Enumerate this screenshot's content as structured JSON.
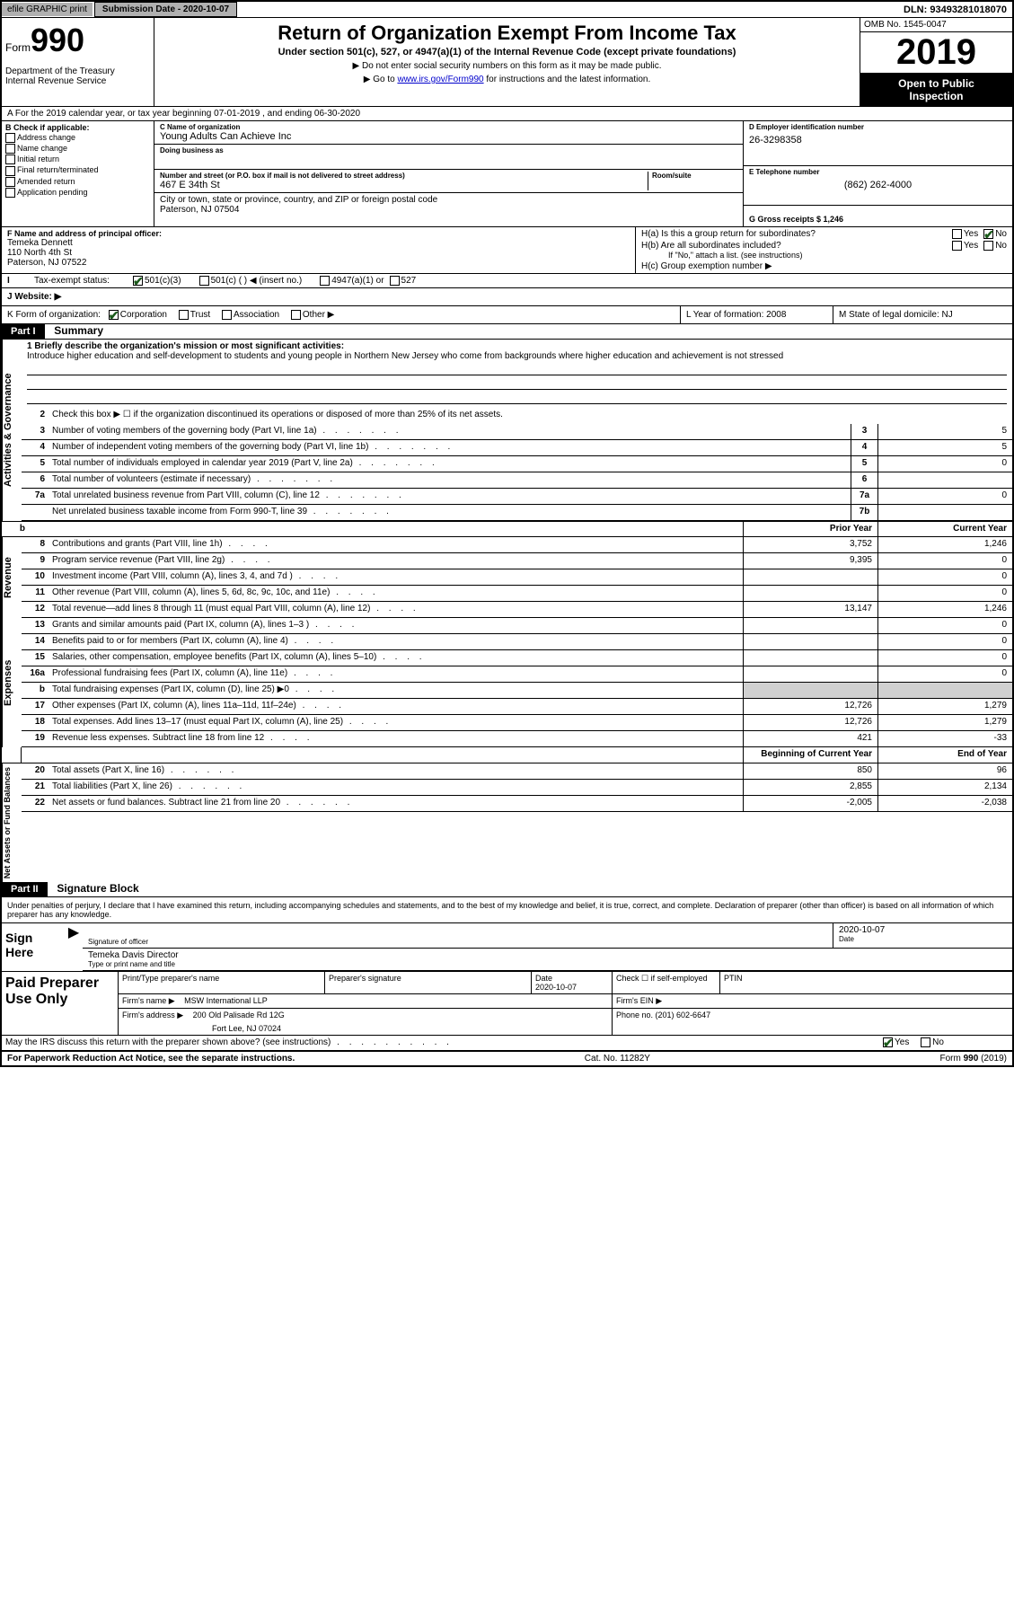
{
  "topbar": {
    "efile": "efile GRAPHIC print",
    "submission_label": "Submission Date - 2020-10-07",
    "dln": "DLN: 93493281018070"
  },
  "header": {
    "form_word": "Form",
    "form_num": "990",
    "dept": "Department of the Treasury\nInternal Revenue Service",
    "title": "Return of Organization Exempt From Income Tax",
    "subtitle": "Under section 501(c), 527, or 4947(a)(1) of the Internal Revenue Code (except private foundations)",
    "instr1": "▶ Do not enter social security numbers on this form as it may be made public.",
    "instr2_pre": "▶ Go to ",
    "instr2_link": "www.irs.gov/Form990",
    "instr2_post": " for instructions and the latest information.",
    "omb": "OMB No. 1545-0047",
    "year": "2019",
    "open1": "Open to Public",
    "open2": "Inspection"
  },
  "row_a": "A For the 2019 calendar year, or tax year beginning 07-01-2019    , and ending 06-30-2020",
  "col_b": {
    "title": "B Check if applicable:",
    "items": [
      "Address change",
      "Name change",
      "Initial return",
      "Final return/terminated",
      "Amended return",
      "Application pending"
    ]
  },
  "col_c": {
    "name_label": "C Name of organization",
    "name": "Young Adults Can Achieve Inc",
    "dba_label": "Doing business as",
    "dba": "",
    "street_label": "Number and street (or P.O. box if mail is not delivered to street address)",
    "room_label": "Room/suite",
    "street": "467 E 34th St",
    "city_label": "City or town, state or province, country, and ZIP or foreign postal code",
    "city": "Paterson, NJ  07504"
  },
  "col_d": {
    "ein_label": "D Employer identification number",
    "ein": "26-3298358",
    "phone_label": "E Telephone number",
    "phone": "(862) 262-4000",
    "gross_label": "G Gross receipts $ 1,246"
  },
  "col_f": {
    "label": "F  Name and address of principal officer:",
    "name": "Temeka Dennett",
    "addr1": "110 North 4th St",
    "addr2": "Paterson, NJ  07522"
  },
  "col_h": {
    "ha": "H(a)  Is this a group return for subordinates?",
    "hb": "H(b)  Are all subordinates included?",
    "hb_note": "If \"No,\" attach a list. (see instructions)",
    "hc": "H(c)  Group exemption number ▶",
    "yes": "Yes",
    "no": "No"
  },
  "tax_status": {
    "label": "Tax-exempt status:",
    "opt1": "501(c)(3)",
    "opt2": "501(c) (   ) ◀ (insert no.)",
    "opt3": "4947(a)(1) or",
    "opt4": "527"
  },
  "website": "J   Website: ▶",
  "row_k": {
    "label": "K Form of organization:",
    "opts": [
      "Corporation",
      "Trust",
      "Association",
      "Other ▶"
    ]
  },
  "row_l": "L Year of formation: 2008",
  "row_m": "M State of legal domicile: NJ",
  "part1": {
    "header": "Part I",
    "title": "Summary",
    "mission_label": "1   Briefly describe the organization's mission or most significant activities:",
    "mission": "Introduce higher education and self-development to students and young people in Northern New Jersey who come from backgrounds where higher education and achievement is not stressed",
    "line2": "Check this box ▶ ☐  if the organization discontinued its operations or disposed of more than 25% of its net assets."
  },
  "side_labels": {
    "gov": "Activities & Governance",
    "rev": "Revenue",
    "exp": "Expenses",
    "net": "Net Assets or Fund Balances"
  },
  "gov_lines": [
    {
      "n": "3",
      "d": "Number of voting members of the governing body (Part VI, line 1a)",
      "b": "3",
      "v": "5"
    },
    {
      "n": "4",
      "d": "Number of independent voting members of the governing body (Part VI, line 1b)",
      "b": "4",
      "v": "5"
    },
    {
      "n": "5",
      "d": "Total number of individuals employed in calendar year 2019 (Part V, line 2a)",
      "b": "5",
      "v": "0"
    },
    {
      "n": "6",
      "d": "Total number of volunteers (estimate if necessary)",
      "b": "6",
      "v": ""
    },
    {
      "n": "7a",
      "d": "Total unrelated business revenue from Part VIII, column (C), line 12",
      "b": "7a",
      "v": "0"
    },
    {
      "n": "",
      "d": "Net unrelated business taxable income from Form 990-T, line 39",
      "b": "7b",
      "v": ""
    }
  ],
  "col_headers": {
    "prior": "Prior Year",
    "current": "Current Year"
  },
  "rev_lines": [
    {
      "n": "8",
      "d": "Contributions and grants (Part VIII, line 1h)",
      "p": "3,752",
      "c": "1,246"
    },
    {
      "n": "9",
      "d": "Program service revenue (Part VIII, line 2g)",
      "p": "9,395",
      "c": "0"
    },
    {
      "n": "10",
      "d": "Investment income (Part VIII, column (A), lines 3, 4, and 7d )",
      "p": "",
      "c": "0"
    },
    {
      "n": "11",
      "d": "Other revenue (Part VIII, column (A), lines 5, 6d, 8c, 9c, 10c, and 11e)",
      "p": "",
      "c": "0"
    },
    {
      "n": "12",
      "d": "Total revenue—add lines 8 through 11 (must equal Part VIII, column (A), line 12)",
      "p": "13,147",
      "c": "1,246"
    }
  ],
  "exp_lines": [
    {
      "n": "13",
      "d": "Grants and similar amounts paid (Part IX, column (A), lines 1–3 )",
      "p": "",
      "c": "0"
    },
    {
      "n": "14",
      "d": "Benefits paid to or for members (Part IX, column (A), line 4)",
      "p": "",
      "c": "0"
    },
    {
      "n": "15",
      "d": "Salaries, other compensation, employee benefits (Part IX, column (A), lines 5–10)",
      "p": "",
      "c": "0"
    },
    {
      "n": "16a",
      "d": "Professional fundraising fees (Part IX, column (A), line 11e)",
      "p": "",
      "c": "0"
    },
    {
      "n": "b",
      "d": "Total fundraising expenses (Part IX, column (D), line 25) ▶0",
      "p": "grey",
      "c": "grey"
    },
    {
      "n": "17",
      "d": "Other expenses (Part IX, column (A), lines 11a–11d, 11f–24e)",
      "p": "12,726",
      "c": "1,279"
    },
    {
      "n": "18",
      "d": "Total expenses. Add lines 13–17 (must equal Part IX, column (A), line 25)",
      "p": "12,726",
      "c": "1,279"
    },
    {
      "n": "19",
      "d": "Revenue less expenses. Subtract line 18 from line 12",
      "p": "421",
      "c": "-33"
    }
  ],
  "net_headers": {
    "begin": "Beginning of Current Year",
    "end": "End of Year"
  },
  "net_lines": [
    {
      "n": "20",
      "d": "Total assets (Part X, line 16)",
      "p": "850",
      "c": "96"
    },
    {
      "n": "21",
      "d": "Total liabilities (Part X, line 26)",
      "p": "2,855",
      "c": "2,134"
    },
    {
      "n": "22",
      "d": "Net assets or fund balances. Subtract line 21 from line 20",
      "p": "-2,005",
      "c": "-2,038"
    }
  ],
  "part2": {
    "header": "Part II",
    "title": "Signature Block",
    "decl": "Under penalties of perjury, I declare that I have examined this return, including accompanying schedules and statements, and to the best of my knowledge and belief, it is true, correct, and complete. Declaration of preparer (other than officer) is based on all information of which preparer has any knowledge."
  },
  "sign": {
    "left": "Sign Here",
    "sig_label": "Signature of officer",
    "date": "2020-10-07",
    "date_label": "Date",
    "name": "Temeka Davis  Director",
    "name_label": "Type or print name and title"
  },
  "prep": {
    "left": "Paid Preparer Use Only",
    "r1": {
      "a": "Print/Type preparer's name",
      "b": "Preparer's signature",
      "c": "Date",
      "c2": "2020-10-07",
      "d": "Check ☐  if self-employed",
      "e": "PTIN"
    },
    "r2": {
      "a": "Firm's name      ▶",
      "b": "MSW International LLP",
      "c": "Firm's EIN ▶"
    },
    "r3": {
      "a": "Firm's address ▶",
      "b": "200 Old Palisade Rd 12G",
      "c": "Phone no. (201) 602-6647"
    },
    "r3b": "Fort Lee, NJ  07024"
  },
  "discuss": "May the IRS discuss this return with the preparer shown above? (see instructions)",
  "footer": {
    "left": "For Paperwork Reduction Act Notice, see the separate instructions.",
    "mid": "Cat. No. 11282Y",
    "right": "Form 990 (2019)"
  }
}
